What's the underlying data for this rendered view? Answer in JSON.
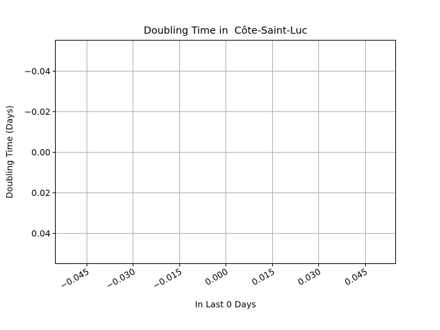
{
  "chart_data": {
    "type": "line",
    "title": "Doubling Time in  Côte-Saint-Luc",
    "xlabel": "In Last 0 Days",
    "ylabel": "Doubling Time (Days)",
    "x": [],
    "series": [
      {
        "values": []
      }
    ],
    "xlim": [
      -0.055,
      0.055
    ],
    "ylim": [
      0.055,
      -0.055
    ],
    "y_inverted": true,
    "xticks": [
      -0.045,
      -0.03,
      -0.015,
      0.0,
      0.015,
      0.03,
      0.045
    ],
    "xtick_labels": [
      "−0.045",
      "−0.030",
      "−0.015",
      "0.000",
      "0.015",
      "0.030",
      "0.045"
    ],
    "yticks": [
      -0.04,
      -0.02,
      0.0,
      0.02,
      0.04
    ],
    "ytick_labels": [
      "−0.04",
      "−0.02",
      "0.00",
      "0.02",
      "0.04"
    ],
    "grid": true,
    "legend": "none",
    "colors": {
      "grid": "#b0b0b0",
      "axes": "#000000",
      "background": "#ffffff"
    }
  }
}
